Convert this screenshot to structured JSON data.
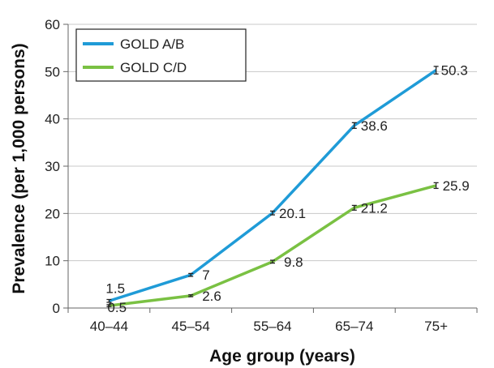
{
  "chart_data": {
    "type": "line",
    "categories": [
      "40–44",
      "45–54",
      "55–64",
      "65–74",
      "75+"
    ],
    "series": [
      {
        "name": "GOLD A/B",
        "color": "#1f9bd7",
        "values": [
          1.5,
          7,
          20.1,
          38.6,
          50.3
        ],
        "labels": [
          "1.5",
          "7",
          "20.1",
          "38.6",
          "50.3"
        ],
        "error": [
          0.3,
          0.3,
          0.4,
          0.6,
          0.8
        ]
      },
      {
        "name": "GOLD C/D",
        "color": "#7ac143",
        "values": [
          0.5,
          2.6,
          9.8,
          21.2,
          25.9
        ],
        "labels": [
          "0.5",
          "2.6",
          "9.8",
          "21.2",
          "25.9"
        ],
        "error": [
          0.2,
          0.2,
          0.3,
          0.5,
          0.6
        ]
      }
    ],
    "xlabel": "Age group (years)",
    "ylabel": "Prevalence (per 1,000 persons)",
    "ylim": [
      0,
      60
    ],
    "yticks": [
      "0",
      "10",
      "20",
      "30",
      "40",
      "50",
      "60"
    ],
    "grid": true,
    "legend_position": "top-left"
  }
}
